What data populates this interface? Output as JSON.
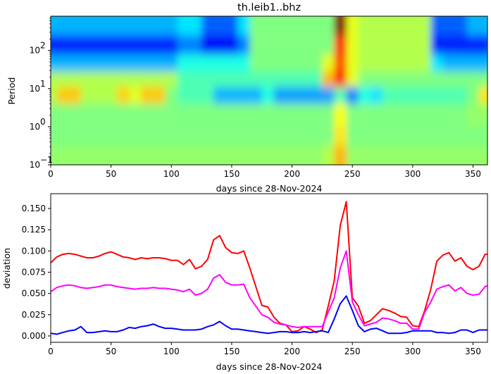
{
  "chart_data": [
    {
      "type": "heatmap",
      "title": "th.leib1..bhz",
      "xlabel": "days since 28-Nov-2024",
      "ylabel": "Period",
      "xlim": [
        0,
        362
      ],
      "ylim": [
        0.1,
        794
      ],
      "yscale": "log",
      "colormap": "jet",
      "xticks": [
        "0",
        "50",
        "100",
        "150",
        "200",
        "250",
        "300",
        "350"
      ],
      "xtick_values": [
        0,
        50,
        100,
        150,
        200,
        250,
        300,
        350
      ],
      "yticks": [
        {
          "base": "10",
          "exp": "−1",
          "value": 0.1
        },
        {
          "base": "10",
          "exp": "0",
          "value": 1
        },
        {
          "base": "10",
          "exp": "1",
          "value": 10
        },
        {
          "base": "10",
          "exp": "2",
          "value": 100
        }
      ],
      "day_bin_step": 10,
      "period_bin_edges": [
        794,
        251,
        79,
        28,
        11,
        4,
        1,
        0.316,
        0.1
      ],
      "values": [
        [
          0.3,
          0.3,
          0.3,
          0.3,
          0.3,
          0.3,
          0.3,
          0.3,
          0.3,
          0.3,
          0.3,
          0.35,
          0.35,
          0.22,
          0.22,
          0.22,
          0.35,
          0.5,
          0.5,
          0.5,
          0.5,
          0.5,
          0.5,
          0.5,
          1.0,
          0.6,
          0.55,
          0.55,
          0.55,
          0.55,
          0.55,
          0.55,
          0.22,
          0.22,
          0.22,
          0.3,
          0.3
        ],
        [
          0.15,
          0.15,
          0.15,
          0.15,
          0.15,
          0.15,
          0.15,
          0.15,
          0.15,
          0.15,
          0.15,
          0.25,
          0.25,
          0.12,
          0.12,
          0.12,
          0.25,
          0.5,
          0.5,
          0.5,
          0.5,
          0.5,
          0.5,
          0.5,
          0.85,
          0.6,
          0.55,
          0.55,
          0.55,
          0.55,
          0.55,
          0.55,
          0.15,
          0.15,
          0.15,
          0.15,
          0.15
        ],
        [
          0.3,
          0.3,
          0.3,
          0.3,
          0.3,
          0.3,
          0.3,
          0.3,
          0.3,
          0.3,
          0.3,
          0.4,
          0.4,
          0.4,
          0.4,
          0.4,
          0.4,
          0.5,
          0.5,
          0.5,
          0.5,
          0.5,
          0.5,
          0.6,
          0.8,
          0.6,
          0.55,
          0.55,
          0.55,
          0.55,
          0.55,
          0.55,
          0.35,
          0.3,
          0.3,
          0.3,
          0.3
        ],
        [
          0.55,
          0.55,
          0.55,
          0.55,
          0.55,
          0.55,
          0.55,
          0.55,
          0.55,
          0.55,
          0.55,
          0.45,
          0.45,
          0.45,
          0.45,
          0.45,
          0.45,
          0.45,
          0.45,
          0.45,
          0.45,
          0.45,
          0.45,
          0.7,
          0.85,
          0.6,
          0.5,
          0.5,
          0.5,
          0.5,
          0.5,
          0.5,
          0.5,
          0.5,
          0.5,
          0.5,
          0.5
        ],
        [
          0.55,
          0.68,
          0.68,
          0.55,
          0.55,
          0.55,
          0.67,
          0.6,
          0.68,
          0.68,
          0.5,
          0.45,
          0.45,
          0.45,
          0.3,
          0.3,
          0.3,
          0.3,
          0.4,
          0.28,
          0.28,
          0.28,
          0.28,
          0.28,
          0.45,
          0.25,
          0.4,
          0.35,
          0.45,
          0.45,
          0.45,
          0.45,
          0.45,
          0.45,
          0.45,
          0.5,
          0.65
        ],
        [
          0.5,
          0.5,
          0.5,
          0.5,
          0.5,
          0.5,
          0.5,
          0.5,
          0.5,
          0.5,
          0.5,
          0.5,
          0.5,
          0.5,
          0.5,
          0.5,
          0.5,
          0.5,
          0.5,
          0.5,
          0.5,
          0.5,
          0.5,
          0.5,
          0.62,
          0.5,
          0.5,
          0.5,
          0.5,
          0.5,
          0.5,
          0.5,
          0.5,
          0.5,
          0.5,
          0.52,
          0.52
        ],
        [
          0.5,
          0.5,
          0.5,
          0.5,
          0.5,
          0.5,
          0.5,
          0.5,
          0.5,
          0.5,
          0.5,
          0.5,
          0.5,
          0.5,
          0.5,
          0.5,
          0.5,
          0.5,
          0.5,
          0.5,
          0.5,
          0.5,
          0.5,
          0.5,
          0.65,
          0.5,
          0.5,
          0.5,
          0.5,
          0.5,
          0.5,
          0.5,
          0.5,
          0.5,
          0.5,
          0.5,
          0.5
        ],
        [
          0.52,
          0.52,
          0.52,
          0.52,
          0.52,
          0.52,
          0.52,
          0.52,
          0.52,
          0.52,
          0.52,
          0.52,
          0.52,
          0.52,
          0.52,
          0.52,
          0.52,
          0.52,
          0.52,
          0.52,
          0.52,
          0.52,
          0.52,
          0.55,
          0.7,
          0.52,
          0.52,
          0.52,
          0.52,
          0.52,
          0.52,
          0.52,
          0.52,
          0.52,
          0.52,
          0.52,
          0.52
        ]
      ]
    },
    {
      "type": "line",
      "xlabel": "days since 28-Nov-2024",
      "ylabel": "deviation",
      "xlim": [
        0,
        362
      ],
      "ylim": [
        -0.0075,
        0.1674
      ],
      "xticks": [
        "0",
        "50",
        "100",
        "150",
        "200",
        "250",
        "300",
        "350"
      ],
      "xtick_values": [
        0,
        50,
        100,
        150,
        200,
        250,
        300,
        350
      ],
      "yticks": [
        "0.000",
        "0.025",
        "0.050",
        "0.075",
        "0.100",
        "0.125",
        "0.150"
      ],
      "ytick_values": [
        0,
        0.025,
        0.05,
        0.075,
        0.1,
        0.125,
        0.15
      ],
      "x": [
        0,
        5,
        10,
        15,
        20,
        25,
        30,
        35,
        40,
        45,
        50,
        55,
        60,
        65,
        70,
        75,
        80,
        85,
        90,
        95,
        100,
        105,
        110,
        115,
        120,
        125,
        130,
        135,
        140,
        145,
        150,
        155,
        160,
        165,
        170,
        175,
        180,
        185,
        190,
        195,
        200,
        205,
        210,
        215,
        220,
        225,
        230,
        235,
        240,
        245,
        250,
        255,
        260,
        265,
        270,
        275,
        280,
        285,
        290,
        295,
        300,
        305,
        310,
        315,
        320,
        325,
        330,
        335,
        340,
        345,
        350,
        355,
        360,
        362
      ],
      "series": [
        {
          "color": "#ff0000",
          "values": [
            0.086,
            0.093,
            0.096,
            0.097,
            0.096,
            0.094,
            0.092,
            0.092,
            0.094,
            0.097,
            0.099,
            0.096,
            0.093,
            0.092,
            0.09,
            0.092,
            0.091,
            0.092,
            0.092,
            0.091,
            0.089,
            0.089,
            0.084,
            0.09,
            0.079,
            0.082,
            0.09,
            0.113,
            0.118,
            0.104,
            0.098,
            0.097,
            0.1,
            0.08,
            0.058,
            0.036,
            0.034,
            0.022,
            0.015,
            0.013,
            0.005,
            0.006,
            0.011,
            0.008,
            0.004,
            0.007,
            0.035,
            0.065,
            0.13,
            0.158,
            0.045,
            0.035,
            0.015,
            0.018,
            0.025,
            0.032,
            0.03,
            0.027,
            0.023,
            0.022,
            0.012,
            0.011,
            0.03,
            0.055,
            0.088,
            0.095,
            0.098,
            0.088,
            0.092,
            0.082,
            0.078,
            0.082,
            0.096,
            0.096
          ]
        },
        {
          "color": "#ff00ff",
          "values": [
            0.052,
            0.057,
            0.059,
            0.06,
            0.059,
            0.057,
            0.056,
            0.057,
            0.058,
            0.06,
            0.06,
            0.058,
            0.057,
            0.056,
            0.055,
            0.056,
            0.056,
            0.057,
            0.056,
            0.056,
            0.055,
            0.054,
            0.052,
            0.055,
            0.048,
            0.05,
            0.055,
            0.068,
            0.072,
            0.063,
            0.06,
            0.06,
            0.061,
            0.045,
            0.035,
            0.025,
            0.022,
            0.016,
            0.014,
            0.013,
            0.011,
            0.01,
            0.011,
            0.011,
            0.011,
            0.011,
            0.028,
            0.045,
            0.08,
            0.1,
            0.04,
            0.025,
            0.012,
            0.014,
            0.016,
            0.021,
            0.02,
            0.018,
            0.015,
            0.015,
            0.008,
            0.008,
            0.028,
            0.04,
            0.055,
            0.058,
            0.06,
            0.053,
            0.057,
            0.05,
            0.048,
            0.049,
            0.058,
            0.059
          ]
        },
        {
          "color": "#0000ff",
          "values": [
            0.003,
            0.002,
            0.004,
            0.006,
            0.007,
            0.011,
            0.004,
            0.004,
            0.005,
            0.006,
            0.005,
            0.005,
            0.007,
            0.01,
            0.009,
            0.011,
            0.012,
            0.014,
            0.011,
            0.009,
            0.009,
            0.008,
            0.007,
            0.007,
            0.007,
            0.008,
            0.011,
            0.013,
            0.017,
            0.012,
            0.008,
            0.008,
            0.007,
            0.006,
            0.005,
            0.004,
            0.003,
            0.004,
            0.005,
            0.005,
            0.004,
            0.004,
            0.005,
            0.004,
            0.005,
            0.006,
            0.004,
            0.02,
            0.038,
            0.047,
            0.03,
            0.012,
            0.005,
            0.008,
            0.009,
            0.006,
            0.003,
            0.003,
            0.003,
            0.004,
            0.006,
            0.006,
            0.006,
            0.006,
            0.004,
            0.004,
            0.003,
            0.004,
            0.007,
            0.007,
            0.004,
            0.007,
            0.007,
            0.007
          ]
        }
      ]
    }
  ]
}
